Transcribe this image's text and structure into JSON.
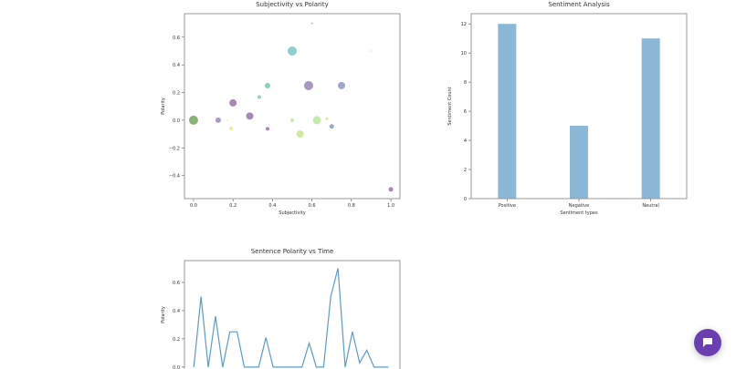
{
  "chart_data": [
    {
      "type": "scatter",
      "title": "Subjectivity vs Polarity",
      "xlabel": "Subjectivity",
      "ylabel": "Polarity",
      "xlim": [
        -0.046,
        1.046
      ],
      "ylim": [
        -0.567,
        0.77
      ],
      "xticks": [
        0.0,
        0.2,
        0.4,
        0.6,
        0.8,
        1.0
      ],
      "yticks": [
        -0.4,
        -0.2,
        0.0,
        0.2,
        0.4,
        0.6
      ],
      "grid": false,
      "points": [
        {
          "x": 0.0,
          "y": 0.0,
          "size": 10,
          "color": "#4f8a2e"
        },
        {
          "x": 0.125,
          "y": 0.0,
          "size": 6,
          "color": "#8064a2"
        },
        {
          "x": 0.17,
          "y": 0.0,
          "size": 1.5,
          "color": "#c8e070"
        },
        {
          "x": 0.19,
          "y": -0.06,
          "size": 4,
          "color": "#e8e84a"
        },
        {
          "x": 0.2,
          "y": 0.125,
          "size": 8,
          "color": "#7a4a8e"
        },
        {
          "x": 0.285,
          "y": 0.03,
          "size": 8,
          "color": "#7a4a8e"
        },
        {
          "x": 0.333,
          "y": 0.167,
          "size": 4,
          "color": "#5ab79a"
        },
        {
          "x": 0.375,
          "y": 0.25,
          "size": 6,
          "color": "#4fb59a"
        },
        {
          "x": 0.375,
          "y": -0.0625,
          "size": 4,
          "color": "#7a4a8e"
        },
        {
          "x": 0.5,
          "y": 0.5,
          "size": 10,
          "color": "#4fb5b0"
        },
        {
          "x": 0.5,
          "y": 0.0,
          "size": 4,
          "color": "#a6dd80"
        },
        {
          "x": 0.54,
          "y": -0.1,
          "size": 8,
          "color": "#b8e06a"
        },
        {
          "x": 0.6,
          "y": 0.7,
          "size": 2,
          "color": "#5ab79a"
        },
        {
          "x": 0.583,
          "y": 0.25,
          "size": 10,
          "color": "#7860a0"
        },
        {
          "x": 0.625,
          "y": 0.0,
          "size": 9,
          "color": "#a6dd80"
        },
        {
          "x": 0.675,
          "y": 0.01,
          "size": 3,
          "color": "#c0e060"
        },
        {
          "x": 0.7,
          "y": -0.045,
          "size": 5,
          "color": "#5a7fa8"
        },
        {
          "x": 0.75,
          "y": 0.25,
          "size": 8,
          "color": "#6a78b0"
        },
        {
          "x": 0.9,
          "y": 0.5,
          "size": 1.5,
          "color": "#a6dd80"
        },
        {
          "x": 1.0,
          "y": -0.5,
          "size": 5,
          "color": "#7a4a8e"
        }
      ]
    },
    {
      "type": "bar",
      "title": "Sentiment Analysis",
      "xlabel": "Sentiment types",
      "ylabel": "Sentiment Count",
      "categories": [
        "Positive",
        "Negative",
        "Neutral"
      ],
      "values": [
        12,
        5,
        11
      ],
      "ylim": [
        0,
        12.7
      ],
      "yticks": [
        0,
        2,
        4,
        6,
        8,
        10,
        12
      ],
      "color": "#8cb8d8",
      "grid": false
    },
    {
      "type": "line",
      "title": "Sentence Polarity vs Time",
      "ylabel": "Polarity",
      "x": [
        0,
        1,
        2,
        3,
        4,
        5,
        6,
        7,
        8,
        9,
        10,
        11,
        12,
        13,
        14,
        15,
        16,
        17,
        18,
        19,
        20,
        21,
        22,
        23,
        24,
        25,
        26,
        27
      ],
      "values": [
        0,
        0.5,
        0,
        0.36,
        0,
        0.25,
        0.25,
        0,
        0,
        0,
        0.21,
        0,
        0,
        0,
        0,
        0,
        0.17,
        0,
        0,
        0.5,
        0.7,
        0,
        0.25,
        0.03,
        0.12,
        0,
        0,
        0
      ],
      "xlim": [
        -1.3,
        28.6
      ],
      "ylim": [
        -0.55,
        0.755
      ],
      "yticks": [
        0.0,
        0.2,
        0.4,
        0.6
      ],
      "color": "#5b9bc8",
      "grid": false
    }
  ],
  "chat_button": {
    "icon": "chat-bubble-icon",
    "color": "#6a3fb0"
  }
}
